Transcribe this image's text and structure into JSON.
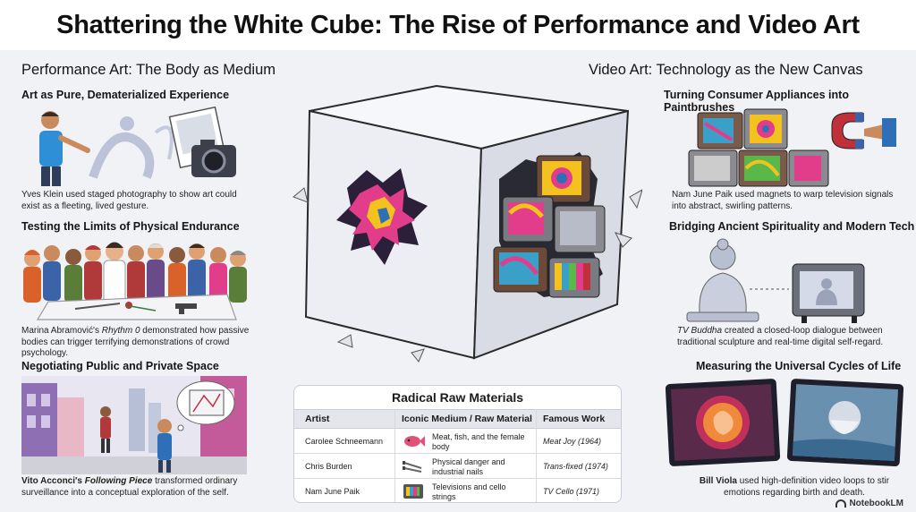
{
  "header": {
    "title": "Shattering the White Cube: The Rise of Performance and Video Art"
  },
  "left": {
    "heading": "Performance Art: The Body as Medium",
    "sections": [
      {
        "title": "Art as Pure, Dematerialized Experience",
        "caption_pre": "Yves Klein used staged photography to show art could exist as a fleeting, lived gesture."
      },
      {
        "title": "Testing the Limits of Physical Endurance",
        "caption_pre": "Marina Abramović's ",
        "caption_em": "Rhythm 0",
        "caption_post": " demonstrated how passive bodies can trigger terrifying demonstrations of crowd psychology."
      },
      {
        "title": "Negotiating Public and Private Space",
        "caption_pre": "Vito Acconci's ",
        "caption_em": "Following Piece",
        "caption_post": " transformed ordinary surveillance into a conceptual exploration of the self."
      }
    ]
  },
  "right": {
    "heading": "Video Art: Technology as the New Canvas",
    "sections": [
      {
        "title": "Turning Consumer Appliances into Paintbrushes",
        "caption_pre": "Nam June Paik used magnets to warp television signals into abstract, swirling patterns."
      },
      {
        "title": "Bridging Ancient Spirituality and Modern Tech",
        "caption_em": "TV Buddha",
        "caption_post": " created a closed-loop dialogue between traditional sculpture and real-time digital self-regard."
      },
      {
        "title": "Measuring the Universal Cycles of Life",
        "caption_strong": "Bill Viola",
        "caption_post": " used high-definition video loops to stir emotions regarding birth and death."
      }
    ]
  },
  "table": {
    "title": "Radical Raw Materials",
    "headers": [
      "Artist",
      "Iconic Medium / Raw Material",
      "Famous Work"
    ],
    "rows": [
      {
        "artist": "Carolee Schneemann",
        "medium": "Meat, fish, and the female body",
        "work": "Meat Joy (1964)",
        "icon": "fish-icon"
      },
      {
        "artist": "Chris Burden",
        "medium": "Physical danger and industrial nails",
        "work": "Trans-fixed (1974)",
        "icon": "nails-icon"
      },
      {
        "artist": "Nam June Paik",
        "medium": "Televisions and cello strings",
        "work": "TV Cello (1971)",
        "icon": "tv-icon"
      }
    ]
  },
  "brand": {
    "label": "NotebookLM"
  },
  "colors": {
    "background": "#f1f2f6",
    "title_bg": "#ffffff",
    "accent_blue": "#2f6fb7",
    "accent_pink": "#e23d8a",
    "accent_yellow": "#f4c21f"
  }
}
